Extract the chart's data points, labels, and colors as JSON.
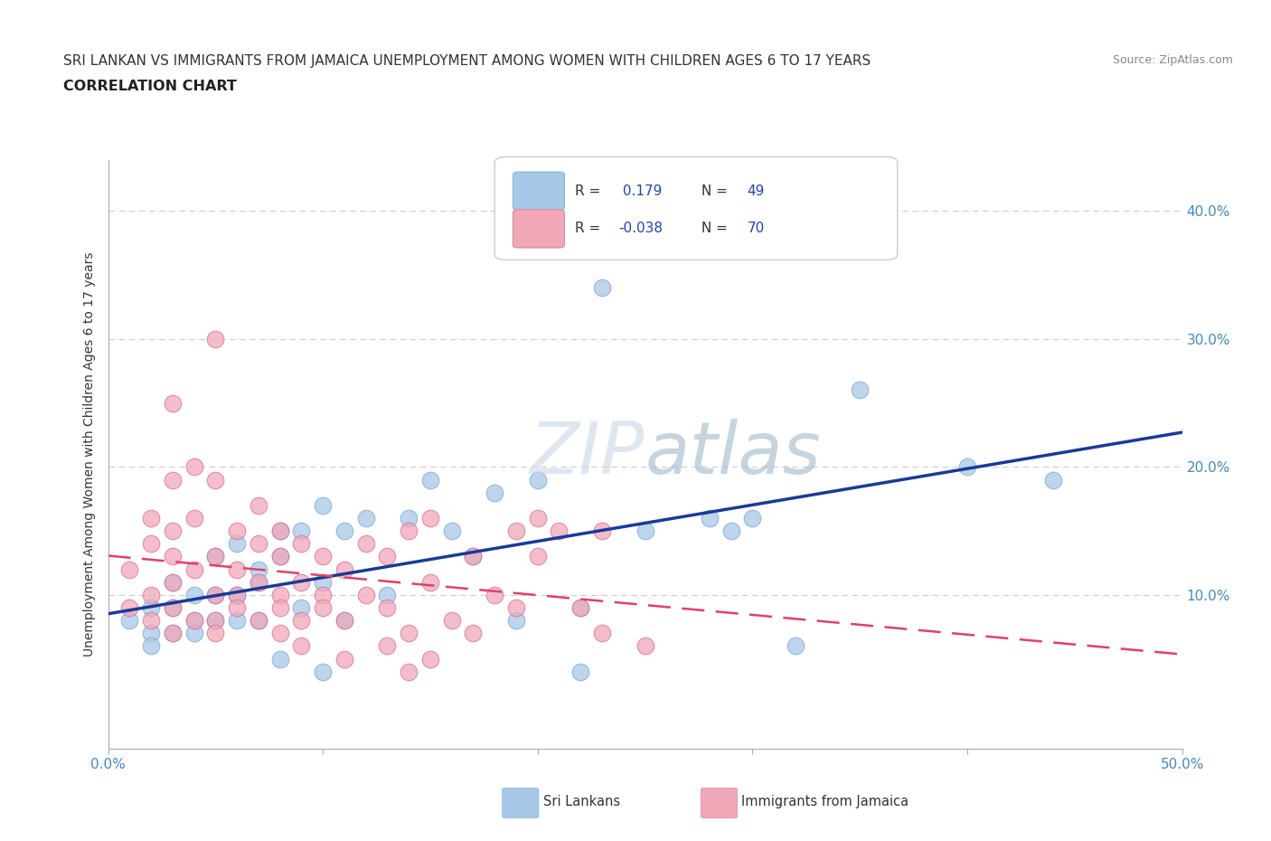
{
  "title_line1": "SRI LANKAN VS IMMIGRANTS FROM JAMAICA UNEMPLOYMENT AMONG WOMEN WITH CHILDREN AGES 6 TO 17 YEARS",
  "title_line2": "CORRELATION CHART",
  "source_text": "Source: ZipAtlas.com",
  "ylabel": "Unemployment Among Women with Children Ages 6 to 17 years",
  "xlim": [
    0.0,
    0.5
  ],
  "ylim": [
    -0.02,
    0.44
  ],
  "y_ticks_right": [
    0.1,
    0.2,
    0.3,
    0.4
  ],
  "y_tick_labels_right": [
    "10.0%",
    "20.0%",
    "30.0%",
    "40.0%"
  ],
  "grid_color": "#cccccc",
  "background_color": "#ffffff",
  "watermark_color_ZIP": "#c8d8e8",
  "watermark_color_atlas": "#a8c0d0",
  "sri_lanka_color": "#a8c8e8",
  "jamaica_color": "#f0a8b8",
  "sri_lanka_line_color": "#1a3a99",
  "jamaica_line_color": "#e0406a",
  "sri_lankans_label": "Sri Lankans",
  "jamaica_label": "Immigrants from Jamaica",
  "sri_lanka_R": 0.179,
  "sri_lanka_N": 49,
  "jamaica_R": -0.038,
  "jamaica_N": 70,
  "sri_lanka_scatter": [
    [
      0.01,
      0.08
    ],
    [
      0.02,
      0.09
    ],
    [
      0.02,
      0.07
    ],
    [
      0.02,
      0.06
    ],
    [
      0.03,
      0.09
    ],
    [
      0.03,
      0.07
    ],
    [
      0.03,
      0.11
    ],
    [
      0.04,
      0.1
    ],
    [
      0.04,
      0.08
    ],
    [
      0.04,
      0.07
    ],
    [
      0.05,
      0.13
    ],
    [
      0.05,
      0.1
    ],
    [
      0.05,
      0.08
    ],
    [
      0.06,
      0.14
    ],
    [
      0.06,
      0.1
    ],
    [
      0.06,
      0.08
    ],
    [
      0.07,
      0.12
    ],
    [
      0.07,
      0.11
    ],
    [
      0.07,
      0.08
    ],
    [
      0.08,
      0.15
    ],
    [
      0.08,
      0.13
    ],
    [
      0.08,
      0.05
    ],
    [
      0.09,
      0.15
    ],
    [
      0.09,
      0.09
    ],
    [
      0.1,
      0.17
    ],
    [
      0.1,
      0.11
    ],
    [
      0.1,
      0.04
    ],
    [
      0.11,
      0.15
    ],
    [
      0.11,
      0.08
    ],
    [
      0.12,
      0.16
    ],
    [
      0.13,
      0.1
    ],
    [
      0.14,
      0.16
    ],
    [
      0.15,
      0.19
    ],
    [
      0.16,
      0.15
    ],
    [
      0.17,
      0.13
    ],
    [
      0.18,
      0.18
    ],
    [
      0.19,
      0.08
    ],
    [
      0.2,
      0.19
    ],
    [
      0.22,
      0.09
    ],
    [
      0.22,
      0.04
    ],
    [
      0.23,
      0.34
    ],
    [
      0.25,
      0.15
    ],
    [
      0.28,
      0.16
    ],
    [
      0.29,
      0.15
    ],
    [
      0.3,
      0.16
    ],
    [
      0.32,
      0.06
    ],
    [
      0.35,
      0.26
    ],
    [
      0.4,
      0.2
    ],
    [
      0.44,
      0.19
    ]
  ],
  "jamaica_scatter": [
    [
      0.01,
      0.09
    ],
    [
      0.01,
      0.12
    ],
    [
      0.02,
      0.1
    ],
    [
      0.02,
      0.14
    ],
    [
      0.02,
      0.08
    ],
    [
      0.02,
      0.16
    ],
    [
      0.03,
      0.11
    ],
    [
      0.03,
      0.13
    ],
    [
      0.03,
      0.09
    ],
    [
      0.03,
      0.19
    ],
    [
      0.03,
      0.15
    ],
    [
      0.03,
      0.07
    ],
    [
      0.03,
      0.25
    ],
    [
      0.04,
      0.12
    ],
    [
      0.04,
      0.08
    ],
    [
      0.04,
      0.2
    ],
    [
      0.04,
      0.16
    ],
    [
      0.05,
      0.1
    ],
    [
      0.05,
      0.13
    ],
    [
      0.05,
      0.19
    ],
    [
      0.05,
      0.08
    ],
    [
      0.05,
      0.07
    ],
    [
      0.05,
      0.3
    ],
    [
      0.06,
      0.12
    ],
    [
      0.06,
      0.15
    ],
    [
      0.06,
      0.1
    ],
    [
      0.06,
      0.09
    ],
    [
      0.07,
      0.14
    ],
    [
      0.07,
      0.11
    ],
    [
      0.07,
      0.08
    ],
    [
      0.07,
      0.17
    ],
    [
      0.08,
      0.13
    ],
    [
      0.08,
      0.1
    ],
    [
      0.08,
      0.07
    ],
    [
      0.08,
      0.15
    ],
    [
      0.08,
      0.09
    ],
    [
      0.09,
      0.11
    ],
    [
      0.09,
      0.08
    ],
    [
      0.09,
      0.14
    ],
    [
      0.09,
      0.06
    ],
    [
      0.1,
      0.1
    ],
    [
      0.1,
      0.13
    ],
    [
      0.1,
      0.09
    ],
    [
      0.11,
      0.12
    ],
    [
      0.11,
      0.08
    ],
    [
      0.11,
      0.05
    ],
    [
      0.12,
      0.14
    ],
    [
      0.12,
      0.1
    ],
    [
      0.13,
      0.13
    ],
    [
      0.13,
      0.09
    ],
    [
      0.13,
      0.06
    ],
    [
      0.14,
      0.07
    ],
    [
      0.14,
      0.15
    ],
    [
      0.14,
      0.04
    ],
    [
      0.15,
      0.16
    ],
    [
      0.15,
      0.11
    ],
    [
      0.15,
      0.05
    ],
    [
      0.16,
      0.08
    ],
    [
      0.17,
      0.13
    ],
    [
      0.17,
      0.07
    ],
    [
      0.18,
      0.1
    ],
    [
      0.19,
      0.15
    ],
    [
      0.19,
      0.09
    ],
    [
      0.2,
      0.16
    ],
    [
      0.2,
      0.13
    ],
    [
      0.21,
      0.15
    ],
    [
      0.22,
      0.09
    ],
    [
      0.23,
      0.15
    ],
    [
      0.23,
      0.07
    ],
    [
      0.25,
      0.06
    ]
  ]
}
